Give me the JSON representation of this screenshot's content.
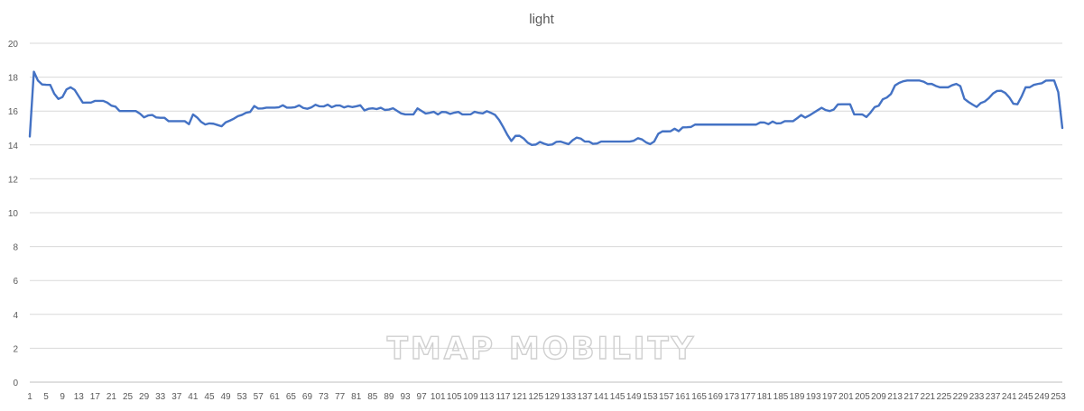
{
  "chart_data": {
    "type": "line",
    "title": "light",
    "xlabel": "",
    "ylabel": "",
    "ylim": [
      0,
      20
    ],
    "y_ticks": [
      0,
      2,
      4,
      6,
      8,
      10,
      12,
      14,
      16,
      18,
      20
    ],
    "x_count": 254,
    "x_tick_step": 4,
    "grid": "horizontal",
    "legend": "none",
    "colors": {
      "series": "#4472c4",
      "grid": "#d9d9d9",
      "text": "#595959"
    },
    "series": [
      {
        "breakpoints": [
          [
            1,
            14.5
          ],
          [
            2,
            18.5
          ],
          [
            4,
            17.8
          ],
          [
            6,
            17.5
          ],
          [
            8,
            17.6
          ],
          [
            9,
            17.5
          ],
          [
            11,
            16.6
          ],
          [
            12,
            16.8
          ],
          [
            13,
            16.8
          ],
          [
            15,
            17.4
          ],
          [
            17,
            17.4
          ],
          [
            19,
            16.9
          ],
          [
            21,
            16.4
          ],
          [
            22,
            16.5
          ],
          [
            24,
            16.5
          ],
          [
            25,
            16.6
          ],
          [
            29,
            16.6
          ],
          [
            31,
            16.3
          ],
          [
            32,
            16.4
          ],
          [
            34,
            16.0
          ],
          [
            41,
            16.0
          ],
          [
            43,
            15.6
          ],
          [
            44,
            15.7
          ],
          [
            46,
            15.8
          ],
          [
            48,
            15.6
          ],
          [
            51,
            15.6
          ],
          [
            52,
            15.4
          ],
          [
            59,
            15.4
          ],
          [
            60,
            15.2
          ],
          [
            61,
            15.8
          ],
          [
            62,
            15.8
          ],
          [
            64,
            15.4
          ],
          [
            66,
            15.2
          ],
          [
            68,
            15.3
          ],
          [
            70,
            15.2
          ],
          [
            72,
            15.1
          ],
          [
            73,
            15.3
          ],
          [
            76,
            15.5
          ],
          [
            78,
            15.7
          ],
          [
            80,
            15.8
          ],
          [
            82,
            16.0
          ],
          [
            83,
            15.9
          ],
          [
            84,
            16.3
          ],
          [
            86,
            16.1
          ],
          [
            88,
            16.2
          ],
          [
            93,
            16.2
          ],
          [
            94,
            16.4
          ],
          [
            96,
            16.2
          ],
          [
            99,
            16.2
          ],
          [
            100,
            16.4
          ],
          [
            103,
            16.1
          ],
          [
            105,
            16.2
          ],
          [
            107,
            16.4
          ],
          [
            109,
            16.2
          ],
          [
            111,
            16.4
          ],
          [
            113,
            16.2
          ],
          [
            115,
            16.4
          ],
          [
            117,
            16.2
          ],
          [
            119,
            16.3
          ],
          [
            121,
            16.2
          ],
          [
            123,
            16.4
          ],
          [
            125,
            16.0
          ],
          [
            127,
            16.2
          ],
          [
            129,
            16.1
          ],
          [
            131,
            16.2
          ],
          [
            133,
            16.0
          ],
          [
            135,
            16.2
          ],
          [
            137,
            16.0
          ],
          [
            139,
            15.8
          ],
          [
            143,
            15.8
          ],
          [
            144,
            16.2
          ],
          [
            146,
            16.0
          ],
          [
            148,
            15.8
          ],
          [
            150,
            16.0
          ],
          [
            152,
            15.8
          ],
          [
            154,
            16.0
          ],
          [
            157,
            15.8
          ],
          [
            159,
            16.0
          ],
          [
            161,
            15.8
          ],
          [
            164,
            15.8
          ],
          [
            166,
            16.0
          ],
          [
            168,
            15.8
          ],
          [
            170,
            16.0
          ],
          [
            173,
            15.8
          ],
          [
            175,
            15.4
          ],
          [
            177,
            14.8
          ],
          [
            179,
            14.2
          ],
          [
            181,
            14.6
          ],
          [
            183,
            14.5
          ],
          [
            186,
            14.0
          ],
          [
            188,
            14.0
          ],
          [
            190,
            14.2
          ],
          [
            192,
            14.0
          ],
          [
            194,
            14.0
          ],
          [
            196,
            14.2
          ],
          [
            198,
            14.2
          ],
          [
            200,
            14.0
          ],
          [
            202,
            14.3
          ],
          [
            204,
            14.5
          ],
          [
            206,
            14.2
          ],
          [
            208,
            14.2
          ],
          [
            210,
            14.0
          ],
          [
            212,
            14.2
          ],
          [
            224,
            14.2
          ],
          [
            226,
            14.4
          ],
          [
            228,
            14.3
          ],
          [
            230,
            14.0
          ],
          [
            232,
            14.2
          ],
          [
            234,
            14.8
          ],
          [
            238,
            14.8
          ],
          [
            240,
            15.0
          ],
          [
            241,
            14.8
          ],
          [
            243,
            15.1
          ],
          [
            245,
            15.0
          ],
          [
            247,
            15.2
          ],
          [
            270,
            15.2
          ],
          [
            272,
            15.4
          ],
          [
            274,
            15.2
          ],
          [
            276,
            15.4
          ],
          [
            278,
            15.2
          ],
          [
            280,
            15.4
          ],
          [
            284,
            15.4
          ],
          [
            286,
            15.8
          ],
          [
            288,
            15.6
          ],
          [
            290,
            15.8
          ],
          [
            292,
            16.0
          ],
          [
            294,
            16.2
          ],
          [
            296,
            16.0
          ],
          [
            298,
            16.0
          ],
          [
            300,
            16.4
          ],
          [
            305,
            16.4
          ],
          [
            306,
            15.8
          ],
          [
            309,
            15.8
          ],
          [
            311,
            15.6
          ],
          [
            313,
            16.2
          ],
          [
            315,
            16.3
          ],
          [
            317,
            16.8
          ],
          [
            319,
            16.8
          ],
          [
            321,
            17.5
          ],
          [
            323,
            17.7
          ],
          [
            325,
            17.8
          ],
          [
            331,
            17.8
          ],
          [
            333,
            17.6
          ],
          [
            335,
            17.6
          ],
          [
            337,
            17.4
          ],
          [
            341,
            17.4
          ],
          [
            343,
            17.6
          ],
          [
            345,
            17.6
          ],
          [
            347,
            16.6
          ],
          [
            349,
            16.5
          ],
          [
            351,
            16.2
          ],
          [
            353,
            16.5
          ],
          [
            355,
            16.6
          ],
          [
            357,
            17.0
          ],
          [
            359,
            17.2
          ],
          [
            361,
            17.2
          ],
          [
            363,
            16.9
          ],
          [
            365,
            16.4
          ],
          [
            367,
            16.4
          ],
          [
            369,
            17.4
          ],
          [
            371,
            17.4
          ],
          [
            373,
            17.6
          ],
          [
            375,
            17.6
          ],
          [
            377,
            17.8
          ],
          [
            380,
            17.8
          ],
          [
            381,
            17.8
          ],
          [
            383,
            15.0
          ]
        ]
      }
    ]
  },
  "watermark": "TMAP MOBILITY"
}
